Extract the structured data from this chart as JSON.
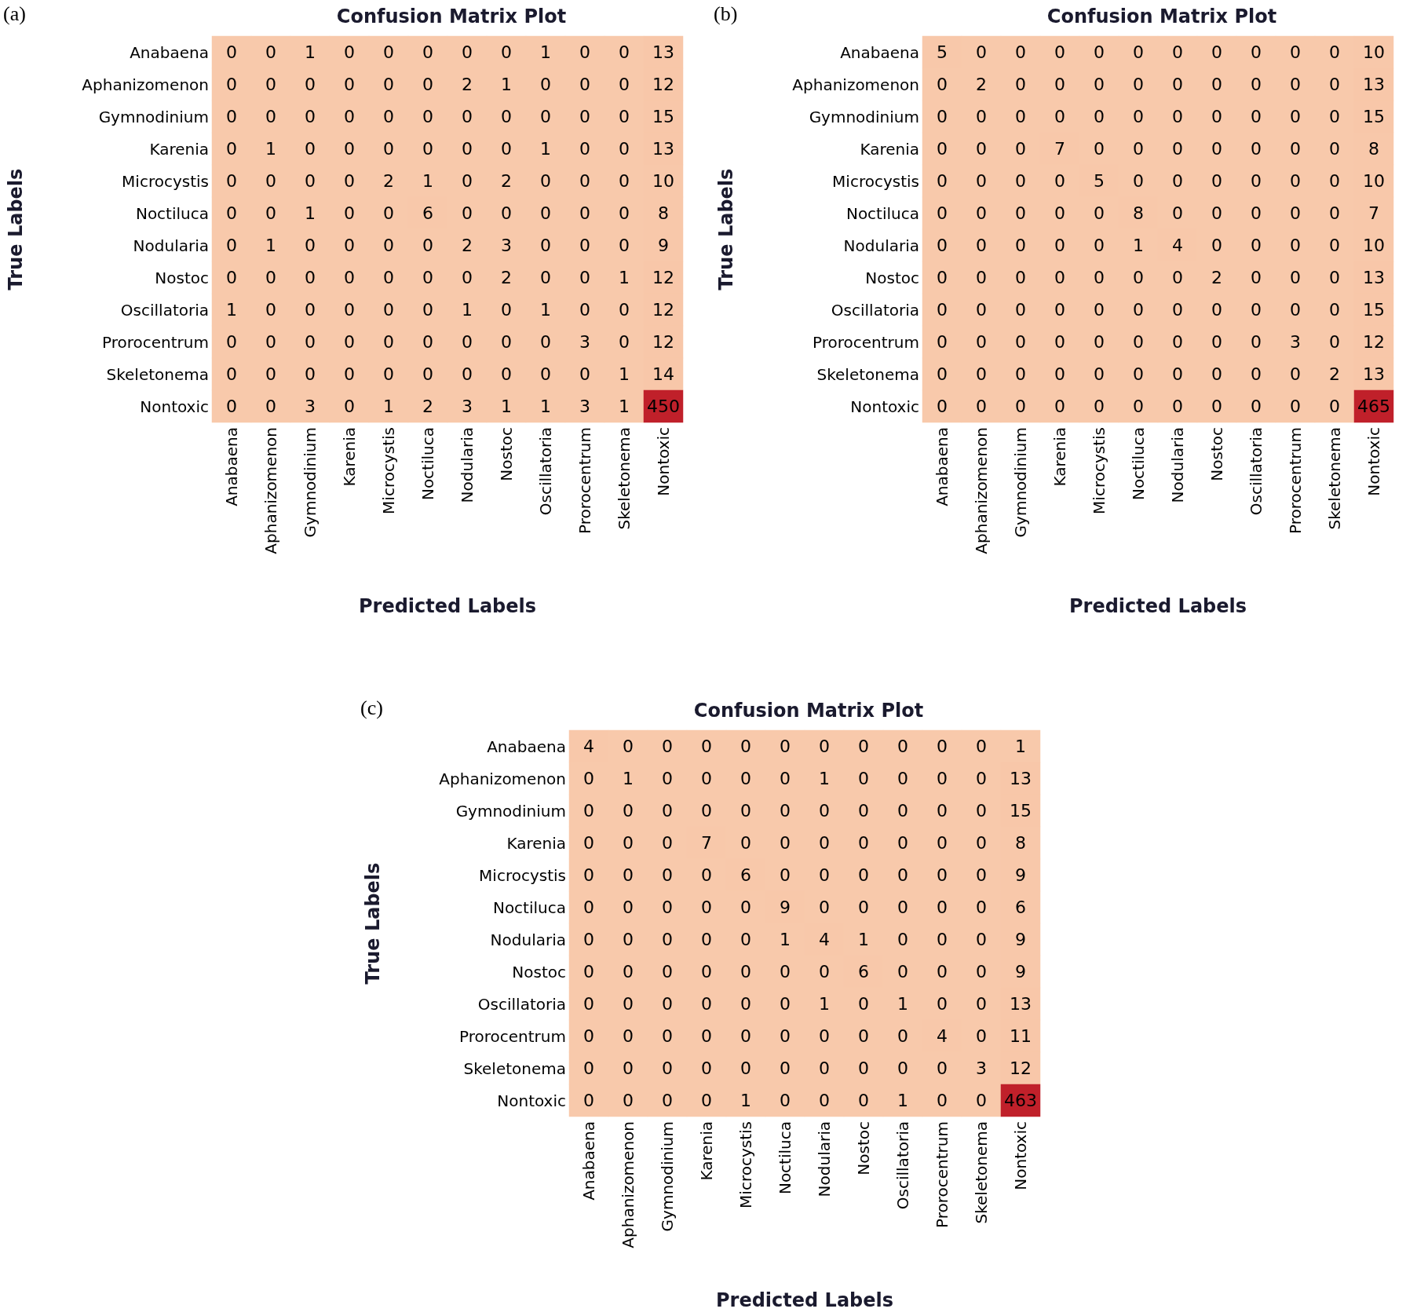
{
  "chart_data": [
    {
      "type": "heatmap",
      "title": "Confusion Matrix Plot",
      "xlabel": "Predicted Labels",
      "ylabel": "True Labels",
      "annotations": [
        "(a)"
      ],
      "data_labels": true,
      "categories": [
        "Anabaena",
        "Aphanizomenon",
        "Gymnodinium",
        "Karenia",
        "Microcystis",
        "Noctiluca",
        "Nodularia",
        "Nostoc",
        "Oscillatoria",
        "Prorocentrum",
        "Skeletonema",
        "Nontoxic"
      ],
      "y_categories": [
        "Anabaena",
        "Aphanizomenon",
        "Gymnodinium",
        "Karenia",
        "Microcystis",
        "Noctiluca",
        "Nodularia",
        "Nostoc",
        "Oscillatoria",
        "Prorocentrum",
        "Skeletonema",
        "Nontoxic"
      ],
      "cells": [
        [
          0,
          0,
          1,
          0,
          0,
          0,
          0,
          0,
          1,
          0,
          0,
          13
        ],
        [
          0,
          0,
          0,
          0,
          0,
          0,
          2,
          1,
          0,
          0,
          0,
          12
        ],
        [
          0,
          0,
          0,
          0,
          0,
          0,
          0,
          0,
          0,
          0,
          0,
          15
        ],
        [
          0,
          1,
          0,
          0,
          0,
          0,
          0,
          0,
          1,
          0,
          0,
          13
        ],
        [
          0,
          0,
          0,
          0,
          2,
          1,
          0,
          2,
          0,
          0,
          0,
          10
        ],
        [
          0,
          0,
          1,
          0,
          0,
          6,
          0,
          0,
          0,
          0,
          0,
          8
        ],
        [
          0,
          1,
          0,
          0,
          0,
          0,
          2,
          3,
          0,
          0,
          0,
          9
        ],
        [
          0,
          0,
          0,
          0,
          0,
          0,
          0,
          2,
          0,
          0,
          1,
          12
        ],
        [
          1,
          0,
          0,
          0,
          0,
          0,
          1,
          0,
          1,
          0,
          0,
          12
        ],
        [
          0,
          0,
          0,
          0,
          0,
          0,
          0,
          0,
          0,
          3,
          0,
          12
        ],
        [
          0,
          0,
          0,
          0,
          0,
          0,
          0,
          0,
          0,
          0,
          1,
          14
        ],
        [
          0,
          0,
          3,
          0,
          1,
          2,
          3,
          1,
          1,
          3,
          1,
          450
        ]
      ]
    },
    {
      "type": "heatmap",
      "title": "Confusion Matrix Plot",
      "xlabel": "Predicted Labels",
      "ylabel": "True Labels",
      "annotations": [
        "(b)"
      ],
      "data_labels": true,
      "categories": [
        "Anabaena",
        "Aphanizomenon",
        "Gymnodinium",
        "Karenia",
        "Microcystis",
        "Noctiluca",
        "Nodularia",
        "Nostoc",
        "Oscillatoria",
        "Prorocentrum",
        "Skeletonema",
        "Nontoxic"
      ],
      "y_categories": [
        "Anabaena",
        "Aphanizomenon",
        "Gymnodinium",
        "Karenia",
        "Microcystis",
        "Noctiluca",
        "Nodularia",
        "Nostoc",
        "Oscillatoria",
        "Prorocentrum",
        "Skeletonema",
        "Nontoxic"
      ],
      "cells": [
        [
          5,
          0,
          0,
          0,
          0,
          0,
          0,
          0,
          0,
          0,
          0,
          10
        ],
        [
          0,
          2,
          0,
          0,
          0,
          0,
          0,
          0,
          0,
          0,
          0,
          13
        ],
        [
          0,
          0,
          0,
          0,
          0,
          0,
          0,
          0,
          0,
          0,
          0,
          15
        ],
        [
          0,
          0,
          0,
          7,
          0,
          0,
          0,
          0,
          0,
          0,
          0,
          8
        ],
        [
          0,
          0,
          0,
          0,
          5,
          0,
          0,
          0,
          0,
          0,
          0,
          10
        ],
        [
          0,
          0,
          0,
          0,
          0,
          8,
          0,
          0,
          0,
          0,
          0,
          7
        ],
        [
          0,
          0,
          0,
          0,
          0,
          1,
          4,
          0,
          0,
          0,
          0,
          10
        ],
        [
          0,
          0,
          0,
          0,
          0,
          0,
          0,
          2,
          0,
          0,
          0,
          13
        ],
        [
          0,
          0,
          0,
          0,
          0,
          0,
          0,
          0,
          0,
          0,
          0,
          15
        ],
        [
          0,
          0,
          0,
          0,
          0,
          0,
          0,
          0,
          0,
          3,
          0,
          12
        ],
        [
          0,
          0,
          0,
          0,
          0,
          0,
          0,
          0,
          0,
          0,
          2,
          13
        ],
        [
          0,
          0,
          0,
          0,
          0,
          0,
          0,
          0,
          0,
          0,
          0,
          465
        ]
      ]
    },
    {
      "type": "heatmap",
      "title": "Confusion Matrix Plot",
      "xlabel": "Predicted Labels",
      "ylabel": "True Labels",
      "annotations": [
        "(c)"
      ],
      "data_labels": true,
      "categories": [
        "Anabaena",
        "Aphanizomenon",
        "Gymnodinium",
        "Karenia",
        "Microcystis",
        "Noctiluca",
        "Nodularia",
        "Nostoc",
        "Oscillatoria",
        "Prorocentrum",
        "Skeletonema",
        "Nontoxic"
      ],
      "y_categories": [
        "Anabaena",
        "Aphanizomenon",
        "Gymnodinium",
        "Karenia",
        "Microcystis",
        "Noctiluca",
        "Nodularia",
        "Nostoc",
        "Oscillatoria",
        "Prorocentrum",
        "Skeletonema",
        "Nontoxic"
      ],
      "cells": [
        [
          4,
          0,
          0,
          0,
          0,
          0,
          0,
          0,
          0,
          0,
          0,
          1
        ],
        [
          0,
          1,
          0,
          0,
          0,
          0,
          1,
          0,
          0,
          0,
          0,
          13
        ],
        [
          0,
          0,
          0,
          0,
          0,
          0,
          0,
          0,
          0,
          0,
          0,
          15
        ],
        [
          0,
          0,
          0,
          7,
          0,
          0,
          0,
          0,
          0,
          0,
          0,
          8
        ],
        [
          0,
          0,
          0,
          0,
          6,
          0,
          0,
          0,
          0,
          0,
          0,
          9
        ],
        [
          0,
          0,
          0,
          0,
          0,
          9,
          0,
          0,
          0,
          0,
          0,
          6
        ],
        [
          0,
          0,
          0,
          0,
          0,
          1,
          4,
          1,
          0,
          0,
          0,
          9
        ],
        [
          0,
          0,
          0,
          0,
          0,
          0,
          0,
          6,
          0,
          0,
          0,
          9
        ],
        [
          0,
          0,
          0,
          0,
          0,
          0,
          1,
          0,
          1,
          0,
          0,
          13
        ],
        [
          0,
          0,
          0,
          0,
          0,
          0,
          0,
          0,
          0,
          4,
          0,
          11
        ],
        [
          0,
          0,
          0,
          0,
          0,
          0,
          0,
          0,
          0,
          0,
          3,
          12
        ],
        [
          0,
          0,
          0,
          0,
          1,
          0,
          0,
          0,
          1,
          0,
          0,
          463
        ]
      ]
    }
  ]
}
